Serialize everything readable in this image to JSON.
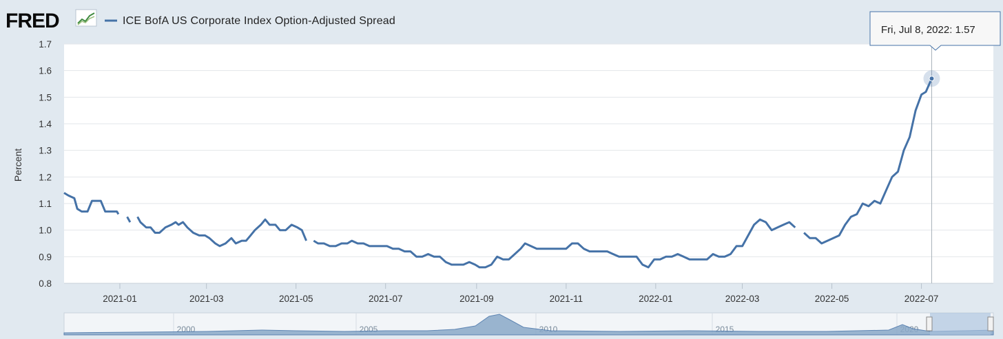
{
  "app": {
    "logo_text": "FRED",
    "logo_icon": "chart-line-icon"
  },
  "legend": {
    "label": "ICE BofA US Corporate Index Option-Adjusted Spread",
    "color": "#4572a7"
  },
  "tooltip": {
    "date": "Fri, Jul 8, 2022:",
    "value": "1.57"
  },
  "navigator": {
    "ticks": [
      "2000",
      "2005",
      "2010",
      "2015",
      "2020"
    ]
  },
  "chart_data": {
    "type": "line",
    "ylabel": "Percent",
    "xlabel": "",
    "ylim": [
      0.8,
      1.7
    ],
    "y_ticks": [
      "0.8",
      "0.9",
      "1.0",
      "1.1",
      "1.2",
      "1.3",
      "1.4",
      "1.5",
      "1.6",
      "1.7"
    ],
    "x_ticks": [
      "2021-01",
      "2021-03",
      "2021-05",
      "2021-07",
      "2021-09",
      "2021-11",
      "2022-01",
      "2022-03",
      "2022-05",
      "2022-07"
    ],
    "x_range": [
      "2020-11-24",
      "2022-08-19"
    ],
    "grid": true,
    "series": [
      {
        "name": "ICE BofA US Corporate Index Option-Adjusted Spread",
        "color": "#4572a7",
        "points": [
          [
            "2020-11-24",
            1.14
          ],
          [
            "2020-11-27",
            1.13
          ],
          [
            "2020-12-01",
            1.12
          ],
          [
            "2020-12-03",
            1.08
          ],
          [
            "2020-12-06",
            1.07
          ],
          [
            "2020-12-10",
            1.07
          ],
          [
            "2020-12-13",
            1.11
          ],
          [
            "2020-12-19",
            1.11
          ],
          [
            "2020-12-22",
            1.07
          ],
          [
            "2020-12-30",
            1.07
          ],
          [
            "2020-12-31",
            1.06
          ],
          null,
          [
            "2021-01-06",
            1.05
          ],
          [
            "2021-01-08",
            1.03
          ],
          null,
          [
            "2021-01-13",
            1.05
          ],
          [
            "2021-01-15",
            1.03
          ],
          [
            "2021-01-19",
            1.01
          ],
          [
            "2021-01-22",
            1.01
          ],
          [
            "2021-01-25",
            0.99
          ],
          [
            "2021-01-28",
            0.99
          ],
          [
            "2021-02-01",
            1.01
          ],
          [
            "2021-02-05",
            1.02
          ],
          [
            "2021-02-08",
            1.03
          ],
          [
            "2021-02-10",
            1.02
          ],
          [
            "2021-02-13",
            1.03
          ],
          [
            "2021-02-16",
            1.01
          ],
          [
            "2021-02-20",
            0.99
          ],
          [
            "2021-02-24",
            0.98
          ],
          [
            "2021-02-28",
            0.98
          ],
          [
            "2021-03-03",
            0.97
          ],
          [
            "2021-03-07",
            0.95
          ],
          [
            "2021-03-10",
            0.94
          ],
          [
            "2021-03-14",
            0.95
          ],
          [
            "2021-03-18",
            0.97
          ],
          [
            "2021-03-21",
            0.95
          ],
          [
            "2021-03-25",
            0.96
          ],
          [
            "2021-03-28",
            0.96
          ],
          [
            "2021-03-31",
            0.98
          ],
          [
            "2021-04-03",
            1.0
          ],
          [
            "2021-04-07",
            1.02
          ],
          [
            "2021-04-10",
            1.04
          ],
          [
            "2021-04-13",
            1.02
          ],
          [
            "2021-04-17",
            1.02
          ],
          [
            "2021-04-20",
            1.0
          ],
          [
            "2021-04-24",
            1.0
          ],
          [
            "2021-04-28",
            1.02
          ],
          [
            "2021-05-02",
            1.01
          ],
          [
            "2021-05-05",
            1.0
          ],
          [
            "2021-05-08",
            0.96
          ],
          null,
          [
            "2021-05-13",
            0.96
          ],
          [
            "2021-05-16",
            0.95
          ],
          [
            "2021-05-20",
            0.95
          ],
          [
            "2021-05-24",
            0.94
          ],
          [
            "2021-05-28",
            0.94
          ],
          [
            "2021-06-01",
            0.95
          ],
          [
            "2021-06-05",
            0.95
          ],
          [
            "2021-06-08",
            0.96
          ],
          [
            "2021-06-12",
            0.95
          ],
          [
            "2021-06-16",
            0.95
          ],
          [
            "2021-06-20",
            0.94
          ],
          [
            "2021-06-24",
            0.94
          ],
          [
            "2021-06-28",
            0.94
          ],
          [
            "2021-07-02",
            0.94
          ],
          [
            "2021-07-06",
            0.93
          ],
          [
            "2021-07-10",
            0.93
          ],
          [
            "2021-07-14",
            0.92
          ],
          [
            "2021-07-18",
            0.92
          ],
          [
            "2021-07-22",
            0.9
          ],
          [
            "2021-07-26",
            0.9
          ],
          [
            "2021-07-30",
            0.91
          ],
          [
            "2021-08-03",
            0.9
          ],
          [
            "2021-08-07",
            0.9
          ],
          [
            "2021-08-11",
            0.88
          ],
          [
            "2021-08-15",
            0.87
          ],
          [
            "2021-08-19",
            0.87
          ],
          [
            "2021-08-23",
            0.87
          ],
          [
            "2021-08-27",
            0.88
          ],
          [
            "2021-08-31",
            0.87
          ],
          [
            "2021-09-03",
            0.86
          ],
          [
            "2021-09-07",
            0.86
          ],
          [
            "2021-09-11",
            0.87
          ],
          [
            "2021-09-15",
            0.9
          ],
          [
            "2021-09-19",
            0.89
          ],
          [
            "2021-09-23",
            0.89
          ],
          [
            "2021-09-27",
            0.91
          ],
          [
            "2021-10-01",
            0.93
          ],
          [
            "2021-10-04",
            0.95
          ],
          [
            "2021-10-08",
            0.94
          ],
          [
            "2021-10-12",
            0.93
          ],
          [
            "2021-10-16",
            0.93
          ],
          [
            "2021-10-20",
            0.93
          ],
          [
            "2021-10-24",
            0.93
          ],
          [
            "2021-10-28",
            0.93
          ],
          [
            "2021-11-01",
            0.93
          ],
          [
            "2021-11-05",
            0.95
          ],
          [
            "2021-11-09",
            0.95
          ],
          [
            "2021-11-13",
            0.93
          ],
          [
            "2021-11-17",
            0.92
          ],
          [
            "2021-11-21",
            0.92
          ],
          [
            "2021-11-25",
            0.92
          ],
          [
            "2021-11-29",
            0.92
          ],
          [
            "2021-12-03",
            0.91
          ],
          [
            "2021-12-07",
            0.9
          ],
          [
            "2021-12-11",
            0.9
          ],
          [
            "2021-12-15",
            0.9
          ],
          [
            "2021-12-19",
            0.9
          ],
          [
            "2021-12-23",
            0.87
          ],
          [
            "2021-12-27",
            0.86
          ],
          [
            "2021-12-31",
            0.89
          ],
          [
            "2022-01-04",
            0.89
          ],
          [
            "2022-01-08",
            0.9
          ],
          [
            "2022-01-12",
            0.9
          ],
          [
            "2022-01-16",
            0.91
          ],
          [
            "2022-01-20",
            0.9
          ],
          [
            "2022-01-24",
            0.89
          ],
          [
            "2022-01-28",
            0.89
          ],
          [
            "2022-02-01",
            0.89
          ],
          [
            "2022-02-05",
            0.89
          ],
          [
            "2022-02-09",
            0.91
          ],
          [
            "2022-02-13",
            0.9
          ],
          [
            "2022-02-17",
            0.9
          ],
          [
            "2022-02-21",
            0.91
          ],
          [
            "2022-02-25",
            0.94
          ],
          [
            "2022-03-01",
            0.94
          ],
          [
            "2022-03-05",
            0.98
          ],
          [
            "2022-03-09",
            1.02
          ],
          [
            "2022-03-13",
            1.04
          ],
          [
            "2022-03-17",
            1.03
          ],
          [
            "2022-03-21",
            1.0
          ],
          [
            "2022-03-25",
            1.01
          ],
          [
            "2022-03-29",
            1.02
          ],
          [
            "2022-04-02",
            1.03
          ],
          [
            "2022-04-06",
            1.01
          ],
          null,
          [
            "2022-04-12",
            0.99
          ],
          [
            "2022-04-16",
            0.97
          ],
          [
            "2022-04-20",
            0.97
          ],
          [
            "2022-04-24",
            0.95
          ],
          [
            "2022-04-28",
            0.96
          ],
          [
            "2022-05-02",
            0.97
          ],
          [
            "2022-05-06",
            0.98
          ],
          [
            "2022-05-10",
            1.02
          ],
          [
            "2022-05-14",
            1.05
          ],
          [
            "2022-05-18",
            1.06
          ],
          [
            "2022-05-22",
            1.1
          ],
          [
            "2022-05-26",
            1.09
          ],
          [
            "2022-05-30",
            1.11
          ],
          [
            "2022-06-03",
            1.1
          ],
          [
            "2022-06-07",
            1.15
          ],
          [
            "2022-06-11",
            1.2
          ],
          [
            "2022-06-15",
            1.22
          ],
          [
            "2022-06-19",
            1.3
          ],
          [
            "2022-06-23",
            1.35
          ],
          [
            "2022-06-27",
            1.45
          ],
          [
            "2022-07-01",
            1.51
          ],
          [
            "2022-07-04",
            1.52
          ],
          [
            "2022-07-08",
            1.57
          ]
        ]
      }
    ]
  }
}
